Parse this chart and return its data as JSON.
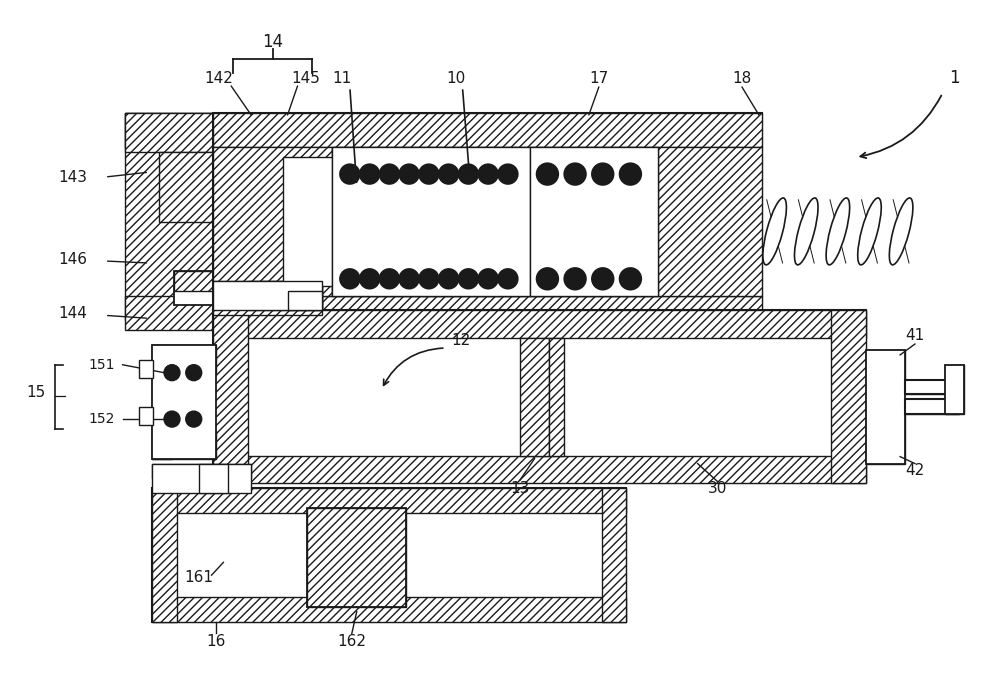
{
  "bg_color": "#ffffff",
  "lc": "#1a1a1a",
  "figsize": [
    10.0,
    6.91
  ],
  "dpi": 100
}
